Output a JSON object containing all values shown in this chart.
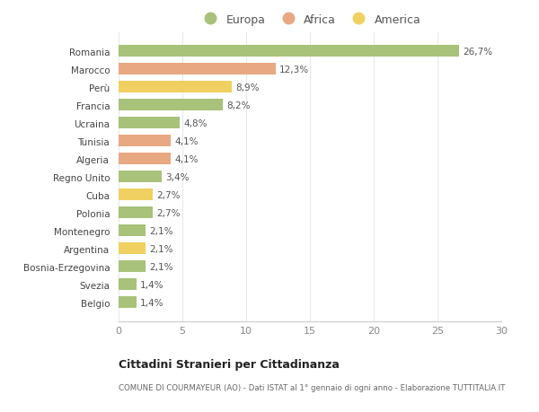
{
  "categories": [
    "Belgio",
    "Svezia",
    "Bosnia-Erzegovina",
    "Argentina",
    "Montenegro",
    "Polonia",
    "Cuba",
    "Regno Unito",
    "Algeria",
    "Tunisia",
    "Ucraina",
    "Francia",
    "Perù",
    "Marocco",
    "Romania"
  ],
  "values": [
    1.4,
    1.4,
    2.1,
    2.1,
    2.1,
    2.7,
    2.7,
    3.4,
    4.1,
    4.1,
    4.8,
    8.2,
    8.9,
    12.3,
    26.7
  ],
  "labels": [
    "1,4%",
    "1,4%",
    "2,1%",
    "2,1%",
    "2,1%",
    "2,7%",
    "2,7%",
    "3,4%",
    "4,1%",
    "4,1%",
    "4,8%",
    "8,2%",
    "8,9%",
    "12,3%",
    "26,7%"
  ],
  "continents": [
    "Europa",
    "Europa",
    "Europa",
    "America",
    "Europa",
    "Europa",
    "America",
    "Europa",
    "Africa",
    "Africa",
    "Europa",
    "Europa",
    "America",
    "Africa",
    "Europa"
  ],
  "colors": {
    "Europa": "#a8c27a",
    "Africa": "#e8a882",
    "America": "#f0d060"
  },
  "xlim": [
    0,
    30
  ],
  "xticks": [
    0,
    5,
    10,
    15,
    20,
    25,
    30
  ],
  "title": "Cittadini Stranieri per Cittadinanza",
  "subtitle": "COMUNE DI COURMAYEUR (AO) - Dati ISTAT al 1° gennaio di ogni anno - Elaborazione TUTTITALIA.IT",
  "background_color": "#ffffff",
  "grid_color": "#e8e8e8",
  "legend_order": [
    "Europa",
    "Africa",
    "America"
  ],
  "label_fontsize": 7.5,
  "ytick_fontsize": 7.5,
  "xtick_fontsize": 8
}
